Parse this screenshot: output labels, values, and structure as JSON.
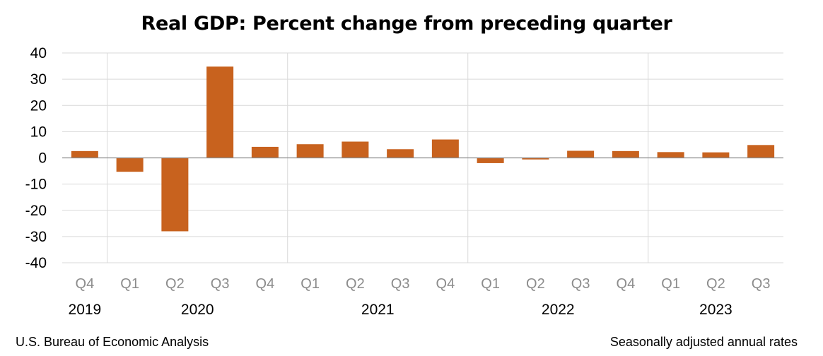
{
  "chart_data": {
    "type": "bar",
    "title": "Real GDP:  Percent change from preceding quarter",
    "categories": [
      "Q4",
      "Q1",
      "Q2",
      "Q3",
      "Q4",
      "Q1",
      "Q2",
      "Q3",
      "Q4",
      "Q1",
      "Q2",
      "Q3",
      "Q4",
      "Q1",
      "Q2",
      "Q3"
    ],
    "values": [
      2.6,
      -5.3,
      -28.0,
      34.8,
      4.2,
      5.2,
      6.2,
      3.3,
      7.0,
      -2.0,
      -0.6,
      2.7,
      2.6,
      2.2,
      2.1,
      4.9
    ],
    "years": [
      {
        "label": "2019",
        "from": 0,
        "to": 0
      },
      {
        "label": "2020",
        "from": 1,
        "to": 4
      },
      {
        "label": "2021",
        "from": 5,
        "to": 8
      },
      {
        "label": "2022",
        "from": 9,
        "to": 12
      },
      {
        "label": "2023",
        "from": 13,
        "to": 15
      }
    ],
    "ylim": [
      -40,
      40
    ],
    "yticks": [
      40,
      30,
      20,
      10,
      0,
      -10,
      -20,
      -30,
      -40
    ],
    "xlabel": "",
    "ylabel": "",
    "grid": true,
    "colors": {
      "bar": "#C8621E",
      "grid": "#D9D9D9",
      "axis": "#8C8C8C",
      "quarter_label": "#8C8C8C"
    }
  },
  "footer": {
    "source": "U.S. Bureau of Economic Analysis",
    "note": "Seasonally adjusted annual rates"
  }
}
